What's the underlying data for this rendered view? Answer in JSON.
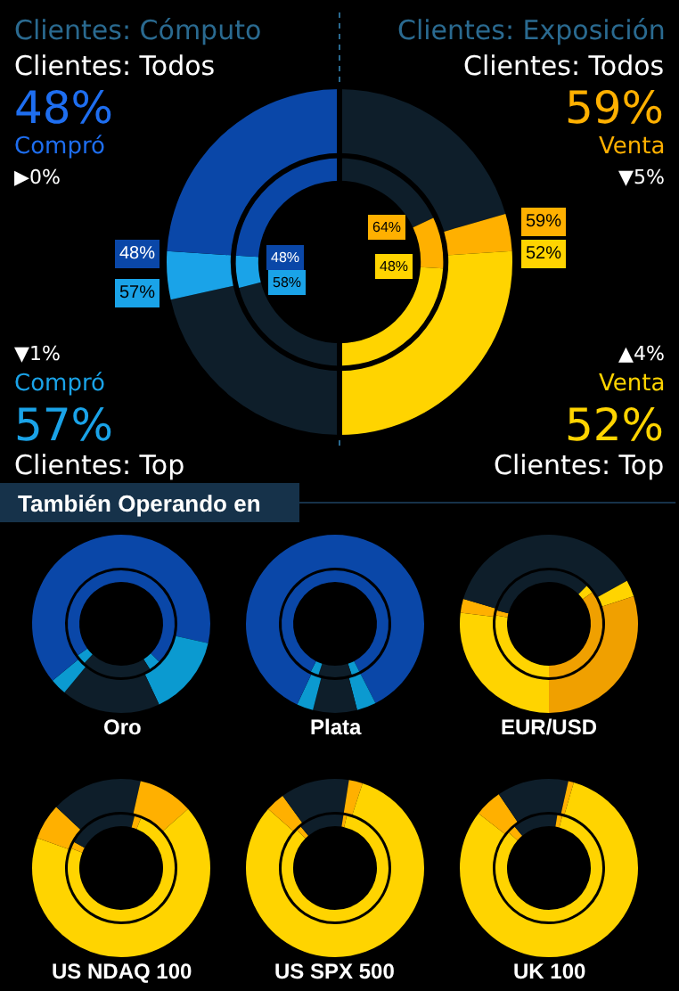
{
  "chart_data": [
    {
      "type": "donut",
      "title": "Clientes: Cómputo",
      "annotations": [
        "Clientes: Exposición",
        "Clientes: Todos",
        "48%",
        "Compró",
        "▶0%",
        "▼1%",
        "Compró",
        "57%",
        "Clientes: Top",
        "Clientes: Todos",
        "59%",
        "Venta",
        "▼5%",
        "▲4%",
        "Venta",
        "52%",
        "Clientes: Top",
        "48%",
        "57%",
        "48%",
        "58%",
        "59%",
        "52%",
        "64%",
        "48%"
      ],
      "categories": [
        null,
        null,
        null,
        null,
        null,
        null
      ],
      "colors": [
        "#0e1e2a",
        "#ffb000",
        "#ffd400",
        "#0e1e2a",
        "#1aa3e8",
        "#0a47a8"
      ],
      "series": [
        {
          "values": [
            20.5,
            3.5,
            26,
            21.5,
            4.5,
            24
          ]
        },
        {
          "values": [
            18,
            8,
            24,
            21,
            5,
            24
          ]
        }
      ]
    },
    {
      "type": "donut",
      "title": "Oro",
      "annotations": [
        "También Operando en"
      ],
      "categories": [
        null,
        null,
        null,
        null,
        null,
        null
      ],
      "colors": [
        "#0a47a8",
        "#0b9ad0",
        "#0e1e2a",
        "#0e1e2a",
        "#0b9ad0",
        "#0a47a8"
      ],
      "series": [
        {
          "values": [
            28.5,
            14.5,
            7,
            11,
            3,
            36
          ]
        },
        {
          "values": [
            37.5,
            3.5,
            9,
            12,
            3,
            35
          ]
        }
      ]
    },
    {
      "type": "donut",
      "title": "Plata",
      "categories": [
        null,
        null,
        null,
        null,
        null,
        null
      ],
      "colors": [
        "#0a47a8",
        "#0b9ad0",
        "#0e1e2a",
        "#0e1e2a",
        "#0b9ad0",
        "#0a47a8"
      ],
      "series": [
        {
          "values": [
            42.5,
            3.5,
            4,
            4,
            3,
            43
          ]
        },
        {
          "values": [
            42.5,
            2.5,
            5,
            5,
            2.5,
            42.5
          ]
        }
      ]
    },
    {
      "type": "donut",
      "title": "EUR/USD",
      "categories": [
        null,
        null,
        null,
        null,
        null,
        null
      ],
      "colors": [
        "#0e1e2a",
        "#ffd400",
        "#f0a000",
        "#ffd400",
        "#ffb000",
        "#0e1e2a"
      ],
      "series": [
        {
          "values": [
            17,
            3,
            30,
            27,
            2.5,
            20.5
          ]
        },
        {
          "values": [
            12.5,
            2.5,
            35,
            27.5,
            1.5,
            21
          ]
        }
      ]
    },
    {
      "type": "donut",
      "title": "US NDAQ 100",
      "categories": [
        null,
        null,
        null,
        null,
        null,
        null
      ],
      "colors": [
        "#0e1e2a",
        "#ffb000",
        "#ffd400",
        "#ffd400",
        "#ffb000",
        "#0e1e2a"
      ],
      "series": [
        {
          "values": [
            3.5,
            10,
            36.5,
            30.5,
            6.5,
            13
          ]
        },
        {
          "values": [
            4,
            2,
            44,
            31,
            2,
            17
          ]
        }
      ]
    },
    {
      "type": "donut",
      "title": "US SPX 500",
      "categories": [
        null,
        null,
        null,
        null,
        null,
        null
      ],
      "colors": [
        "#0e1e2a",
        "#ffb000",
        "#ffd400",
        "#ffd400",
        "#ffb000",
        "#0e1e2a"
      ],
      "series": [
        {
          "values": [
            2.5,
            2.5,
            45,
            36.5,
            3.5,
            10
          ]
        },
        {
          "values": [
            2.5,
            1,
            46.5,
            37.5,
            1.5,
            11
          ]
        }
      ]
    },
    {
      "type": "donut",
      "title": "UK 100",
      "categories": [
        null,
        null,
        null,
        null,
        null,
        null
      ],
      "colors": [
        "#0e1e2a",
        "#ffb000",
        "#ffd400",
        "#ffd400",
        "#ffb000",
        "#0e1e2a"
      ],
      "series": [
        {
          "values": [
            3.5,
            1,
            45.5,
            35.5,
            5,
            9.5
          ]
        },
        {
          "values": [
            2.5,
            1.5,
            46,
            36.5,
            2.5,
            11
          ]
        }
      ]
    }
  ]
}
